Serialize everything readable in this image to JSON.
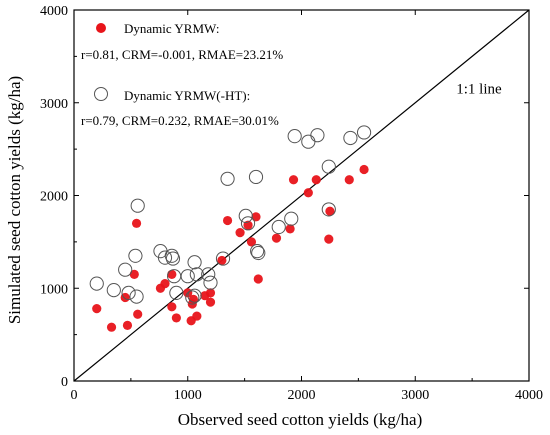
{
  "chart_data": {
    "type": "scatter",
    "xlabel": "Observed seed cotton yields (kg/ha)",
    "ylabel": "Simulated seed cotton yields (kg/ha)",
    "xlim": [
      0,
      4000
    ],
    "ylim": [
      0,
      4000
    ],
    "xticks": [
      "0",
      "1000",
      "2000",
      "3000",
      "4000"
    ],
    "yticks": [
      "0",
      "1000",
      "2000",
      "3000",
      "4000"
    ],
    "grid": false,
    "legend_position": "top-left",
    "annotations": [
      {
        "text": "1:1 line",
        "at_data": [
          3560,
          3100
        ]
      }
    ],
    "reference_line": {
      "name": "1:1 line",
      "from": [
        0,
        0
      ],
      "to": [
        4000,
        4000
      ],
      "color": "#000000"
    },
    "series": [
      {
        "name": "Dynamic YRMW:",
        "stats": "r=0.81, CRM=-0.001, RMAE=23.21%",
        "marker": "filled-circle",
        "color": "#e8141a",
        "points": [
          [
            200,
            780
          ],
          [
            330,
            580
          ],
          [
            450,
            900
          ],
          [
            470,
            600
          ],
          [
            530,
            1150
          ],
          [
            550,
            1700
          ],
          [
            560,
            720
          ],
          [
            760,
            1000
          ],
          [
            800,
            1050
          ],
          [
            860,
            800
          ],
          [
            860,
            1150
          ],
          [
            900,
            680
          ],
          [
            1000,
            950
          ],
          [
            1030,
            650
          ],
          [
            1040,
            830
          ],
          [
            1050,
            880
          ],
          [
            1080,
            700
          ],
          [
            1150,
            920
          ],
          [
            1200,
            850
          ],
          [
            1200,
            950
          ],
          [
            1300,
            1300
          ],
          [
            1350,
            1730
          ],
          [
            1460,
            1600
          ],
          [
            1530,
            1680
          ],
          [
            1560,
            1500
          ],
          [
            1600,
            1770
          ],
          [
            1620,
            1100
          ],
          [
            1780,
            1540
          ],
          [
            1900,
            1640
          ],
          [
            1930,
            2170
          ],
          [
            2060,
            2030
          ],
          [
            2130,
            2170
          ],
          [
            2240,
            1530
          ],
          [
            2250,
            1830
          ],
          [
            2420,
            2170
          ],
          [
            2550,
            2280
          ]
        ]
      },
      {
        "name": "Dynamic YRMW(-HT):",
        "stats": "r=0.79, CRM=0.232, RMAE=30.01%",
        "marker": "open-circle",
        "color": "#555555",
        "points": [
          [
            200,
            1050
          ],
          [
            350,
            980
          ],
          [
            450,
            1200
          ],
          [
            480,
            950
          ],
          [
            540,
            1350
          ],
          [
            550,
            910
          ],
          [
            560,
            1890
          ],
          [
            760,
            1400
          ],
          [
            800,
            1330
          ],
          [
            860,
            1350
          ],
          [
            880,
            1130
          ],
          [
            900,
            950
          ],
          [
            1000,
            1130
          ],
          [
            1040,
            900
          ],
          [
            1060,
            1280
          ],
          [
            1080,
            1150
          ],
          [
            1180,
            1150
          ],
          [
            1200,
            1060
          ],
          [
            1310,
            1320
          ],
          [
            1350,
            2180
          ],
          [
            1510,
            1780
          ],
          [
            1530,
            1700
          ],
          [
            1600,
            2200
          ],
          [
            1610,
            1400
          ],
          [
            1620,
            1380
          ],
          [
            1800,
            1660
          ],
          [
            1910,
            1750
          ],
          [
            1940,
            2640
          ],
          [
            2060,
            2580
          ],
          [
            2140,
            2650
          ],
          [
            2240,
            2310
          ],
          [
            2240,
            1850
          ],
          [
            2430,
            2620
          ],
          [
            2550,
            2680
          ],
          [
            1060,
            920
          ],
          [
            870,
            1320
          ]
        ]
      }
    ]
  }
}
